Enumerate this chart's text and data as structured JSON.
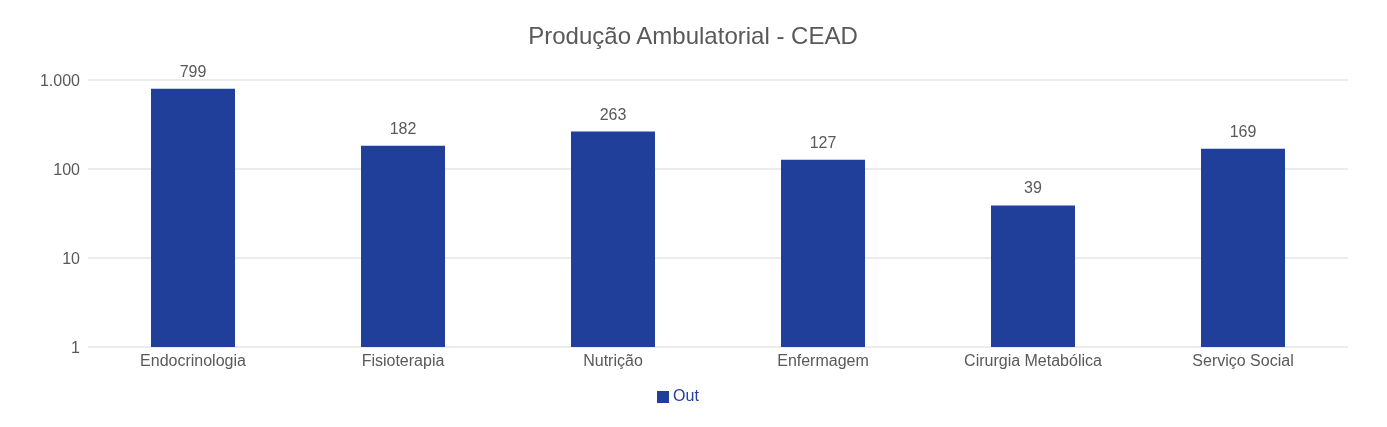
{
  "chart_data": {
    "type": "bar",
    "title": "Produção Ambulatorial - CEAD",
    "categories": [
      "Endocrinologia",
      "Fisioterapia",
      "Nutrição",
      "Enfermagem",
      "Cirurgia Metabólica",
      "Serviço Social"
    ],
    "series": [
      {
        "name": "Out",
        "color": "#1f3f9a",
        "values": [
          799,
          182,
          263,
          127,
          39,
          169
        ]
      }
    ],
    "log": true,
    "ylim": [
      1,
      1000
    ],
    "yticks": [
      1,
      10,
      100,
      {
        "value": 1000,
        "label": "1.000"
      }
    ],
    "grid": "y",
    "legend": "bottom",
    "data_labels": true
  }
}
